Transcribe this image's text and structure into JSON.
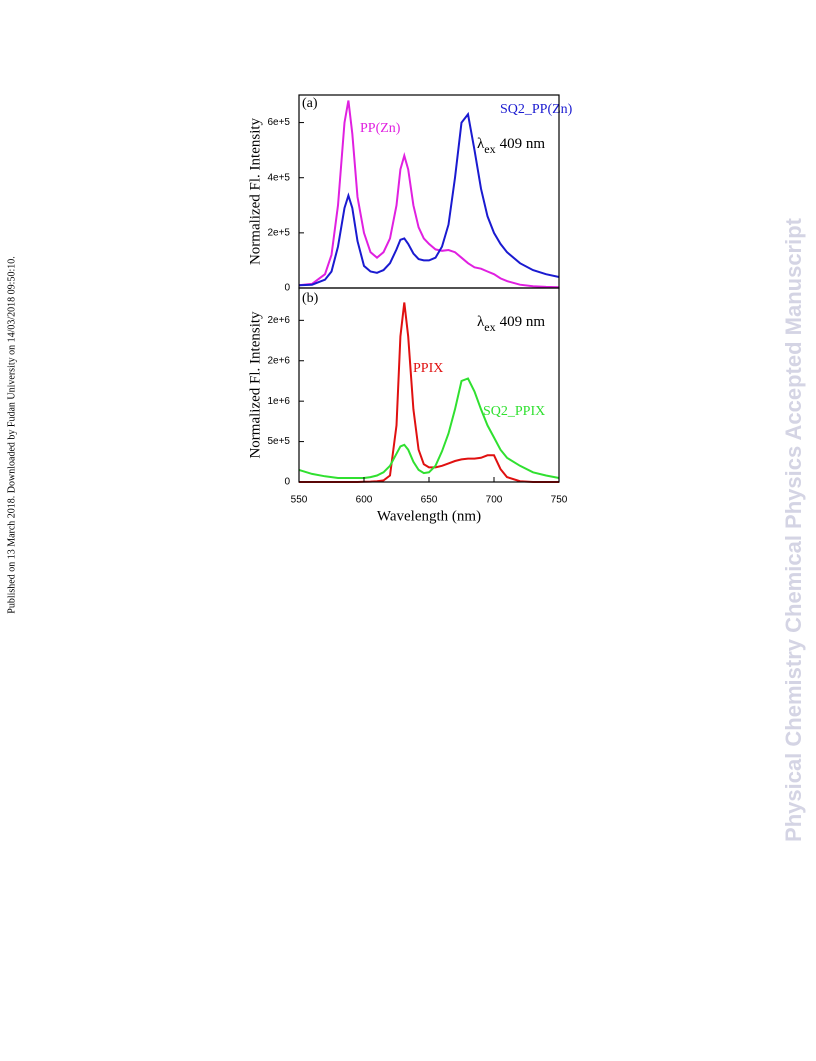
{
  "side_note": "Published on 13 March 2018. Downloaded by Fudan University on 14/03/2018 09:50:10.",
  "watermark": "Physical Chemistry Chemical Physics Accepted Manuscript",
  "chart_data": [
    {
      "type": "line",
      "panel_label": "(a)",
      "ylabel": "Normalized Fl. Intensity",
      "excitation_label": [
        "λ",
        "ex",
        "409 nm"
      ],
      "x": [
        550,
        560,
        570,
        575,
        580,
        585,
        588,
        591,
        595,
        600,
        605,
        610,
        615,
        620,
        625,
        628,
        631,
        634,
        638,
        642,
        646,
        650,
        655,
        660,
        665,
        670,
        675,
        680,
        685,
        690,
        695,
        700,
        705,
        710,
        720,
        730,
        740,
        750
      ],
      "xlim": [
        550,
        750
      ],
      "ylim": [
        0,
        700000
      ],
      "yticks": [
        0,
        {
          "value": 200000,
          "label": "2e+5"
        },
        {
          "value": 400000,
          "label": "4e+5"
        },
        {
          "value": 600000,
          "label": "6e+5"
        }
      ],
      "series": [
        {
          "name": "PP(Zn)",
          "color": "#e020e0",
          "values": [
            10000,
            15000,
            50000,
            120000,
            300000,
            600000,
            680000,
            560000,
            330000,
            200000,
            130000,
            110000,
            130000,
            180000,
            300000,
            430000,
            480000,
            430000,
            300000,
            220000,
            180000,
            160000,
            140000,
            135000,
            138000,
            130000,
            110000,
            90000,
            75000,
            70000,
            60000,
            50000,
            35000,
            25000,
            12000,
            6000,
            4000,
            3000
          ]
        },
        {
          "name": "SQ2_PP(Zn)",
          "color": "#1a1ad0",
          "values": [
            10000,
            12000,
            30000,
            60000,
            150000,
            290000,
            335000,
            290000,
            170000,
            80000,
            60000,
            55000,
            65000,
            90000,
            140000,
            175000,
            180000,
            160000,
            125000,
            105000,
            100000,
            100000,
            110000,
            150000,
            230000,
            400000,
            600000,
            630000,
            500000,
            360000,
            260000,
            200000,
            160000,
            130000,
            90000,
            65000,
            50000,
            40000
          ]
        }
      ]
    },
    {
      "type": "line",
      "panel_label": "(b)",
      "ylabel": "Normalized Fl. Intensity",
      "xlabel": "Wavelength (nm)",
      "excitation_label": [
        "λ",
        "ex",
        "409 nm"
      ],
      "x": [
        550,
        560,
        570,
        575,
        580,
        585,
        588,
        591,
        595,
        600,
        605,
        610,
        615,
        620,
        625,
        628,
        631,
        634,
        638,
        642,
        646,
        650,
        655,
        660,
        665,
        670,
        675,
        680,
        685,
        690,
        695,
        700,
        705,
        710,
        720,
        730,
        740,
        750
      ],
      "xlim": [
        550,
        750
      ],
      "xticks": [
        550,
        600,
        650,
        700,
        750
      ],
      "ylim": [
        0,
        2400000
      ],
      "yticks": [
        0,
        {
          "value": 500000,
          "label": "5e+5"
        },
        {
          "value": 1000000,
          "label": "1e+6"
        },
        {
          "value": 1500000,
          "label": "2e+6"
        },
        {
          "value": 2000000,
          "label": "2e+6"
        }
      ],
      "series": [
        {
          "name": "PPIX",
          "color": "#e01010",
          "values": [
            0,
            0,
            0,
            0,
            0,
            0,
            0,
            0,
            0,
            2000,
            5000,
            10000,
            20000,
            80000,
            700000,
            1800000,
            2220000,
            1800000,
            900000,
            400000,
            220000,
            180000,
            180000,
            200000,
            230000,
            260000,
            280000,
            290000,
            290000,
            300000,
            330000,
            330000,
            160000,
            60000,
            10000,
            0,
            0,
            0
          ]
        },
        {
          "name": "SQ2_PPIX",
          "color": "#30e030",
          "values": [
            150000,
            100000,
            70000,
            60000,
            50000,
            50000,
            50000,
            50000,
            50000,
            50000,
            60000,
            80000,
            120000,
            200000,
            350000,
            440000,
            460000,
            400000,
            250000,
            150000,
            110000,
            120000,
            200000,
            380000,
            600000,
            900000,
            1250000,
            1280000,
            1120000,
            900000,
            700000,
            550000,
            400000,
            300000,
            200000,
            120000,
            80000,
            50000
          ]
        }
      ]
    }
  ]
}
